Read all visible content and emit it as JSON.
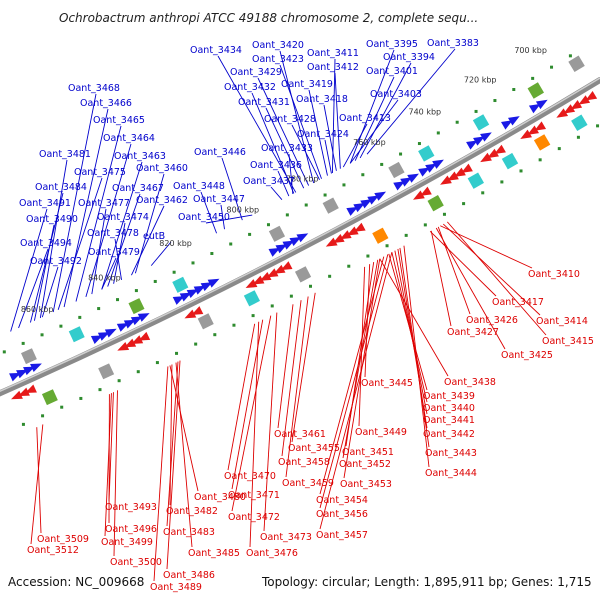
{
  "title": "Ochrobactrum anthropi ATCC 49188 chromosome 2, complete sequ...",
  "footer": {
    "accession": "Accession: NC_009668",
    "summary": "Topology: circular; Length: 1,895,911 bp; Genes: 1,715"
  },
  "colors": {
    "forward_label": "#0000cc",
    "reverse_label": "#dd0000",
    "forward_gene": "#1a1ae6",
    "reverse_gene": "#e61a1a",
    "backbone": "#888888",
    "tick_dot": "#2e8b2e",
    "feature_teal": "#33cccc",
    "feature_green": "#66aa33",
    "feature_grey": "#9a9a9a",
    "feature_orange": "#ff8800"
  },
  "scale_labels": [
    "700 kbp",
    "720 kbp",
    "740 kbp",
    "760 kbp",
    "780 kbp",
    "800 kbp",
    "820 kbp",
    "840 kbp",
    "860 kbp"
  ],
  "forward_labels": [
    "Oant_3434",
    "Oant_3420",
    "Oant_3411",
    "Oant_3395",
    "Oant_3383",
    "Oant_3394",
    "Oant_3423",
    "Oant_3412",
    "Oant_3401",
    "Oant_3429",
    "Oant_3419",
    "Oant_3432",
    "Oant_3418",
    "Oant_3403",
    "Oant_3468",
    "Oant_3431",
    "Oant_3466",
    "Oant_3428",
    "Oant_3413",
    "Oant_3465",
    "Oant_3424",
    "Oant_3464",
    "Oant_3433",
    "Oant_3481",
    "Oant_3446",
    "Oant_3463",
    "Oant_3436",
    "Oant_3475",
    "Oant_3460",
    "Oant_3484",
    "Oant_3437",
    "Oant_3467",
    "Oant_3448",
    "Oant_3491",
    "Oant_3477",
    "Oant_3462",
    "Oant_3447",
    "Oant_3474",
    "Oant_3490",
    "Oant_3450",
    "Oant_3478",
    "eutB",
    "Oant_3494",
    "Oant_3479",
    "Oant_3492"
  ],
  "reverse_labels": [
    "Oant_3410",
    "Oant_3417",
    "Oant_3426",
    "Oant_3414",
    "Oant_3427",
    "Oant_3415",
    "Oant_3425",
    "Oant_3438",
    "Oant_3445",
    "Oant_3439",
    "Oant_3440",
    "Oant_3441",
    "Oant_3449",
    "Oant_3442",
    "Oant_3461",
    "Oant_3455",
    "Oant_3451",
    "Oant_3443",
    "Oant_3458",
    "Oant_3452",
    "Oant_3470",
    "Oant_3444",
    "Oant_3459",
    "Oant_3453",
    "Oant_3480",
    "Oant_3471",
    "Oant_3454",
    "Oant_3493",
    "Oant_3482",
    "Oant_3472",
    "Oant_3456",
    "Oant_3496",
    "Oant_3483",
    "Oant_3473",
    "Oant_3457",
    "Oant_3509",
    "Oant_3499",
    "Oant_3476",
    "Oant_3512",
    "Oant_3485",
    "Oant_3500",
    "Oant_3486",
    "Oant_3489"
  ]
}
